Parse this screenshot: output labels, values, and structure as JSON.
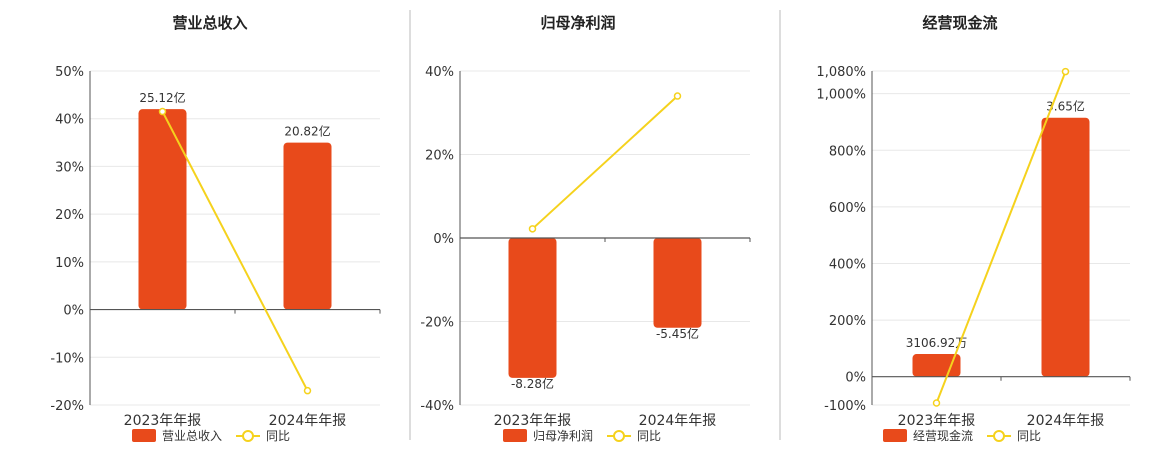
{
  "colors": {
    "bar": "#e84a1b",
    "line": "#f5d21d",
    "axis": "#555555",
    "grid": "#e8e8e8",
    "divider": "#bbbbbb",
    "title": "#222222"
  },
  "chart_data": [
    {
      "type": "bar",
      "title": "营业总收入",
      "categories": [
        "2023年年报",
        "2024年年报"
      ],
      "series": [
        {
          "name": "营业总收入",
          "type": "bar",
          "values": [
            42.0,
            35.0
          ],
          "labels": [
            "25.12亿",
            "20.82亿"
          ]
        },
        {
          "name": "同比",
          "type": "line",
          "values": [
            41.5,
            -17.0
          ]
        }
      ],
      "ylim": [
        -20,
        50
      ],
      "yticks": [
        -20,
        -10,
        0,
        10,
        20,
        30,
        40,
        50
      ],
      "ytick_labels": [
        "-20%",
        "-10%",
        "0%",
        "10%",
        "20%",
        "30%",
        "40%",
        "50%"
      ],
      "grid": true,
      "legend_position": "bottom"
    },
    {
      "type": "bar",
      "title": "归母净利润",
      "categories": [
        "2023年年报",
        "2024年年报"
      ],
      "series": [
        {
          "name": "归母净利润",
          "type": "bar",
          "values": [
            -33.5,
            -21.5
          ],
          "labels": [
            "-8.28亿",
            "-5.45亿"
          ]
        },
        {
          "name": "同比",
          "type": "line",
          "values": [
            2.2,
            34.0
          ]
        }
      ],
      "ylim": [
        -40,
        40
      ],
      "yticks": [
        -40,
        -20,
        0,
        20,
        40
      ],
      "ytick_labels": [
        "-40%",
        "-20%",
        "0%",
        "20%",
        "40%"
      ],
      "grid": true,
      "legend_position": "bottom"
    },
    {
      "type": "bar",
      "title": "经营现金流",
      "categories": [
        "2023年年报",
        "2024年年报"
      ],
      "series": [
        {
          "name": "经营现金流",
          "type": "bar",
          "values": [
            80,
            915
          ],
          "labels": [
            "3106.92万",
            "3.65亿"
          ]
        },
        {
          "name": "同比",
          "type": "line",
          "values": [
            -93,
            1078
          ]
        }
      ],
      "ylim": [
        -100,
        1080
      ],
      "yticks": [
        -100,
        0,
        200,
        400,
        600,
        800,
        1000,
        1080
      ],
      "ytick_labels": [
        "-100%",
        "0%",
        "200%",
        "400%",
        "600%",
        "800%",
        "1,000%",
        "1,080%"
      ],
      "grid": true,
      "legend_position": "bottom"
    }
  ]
}
